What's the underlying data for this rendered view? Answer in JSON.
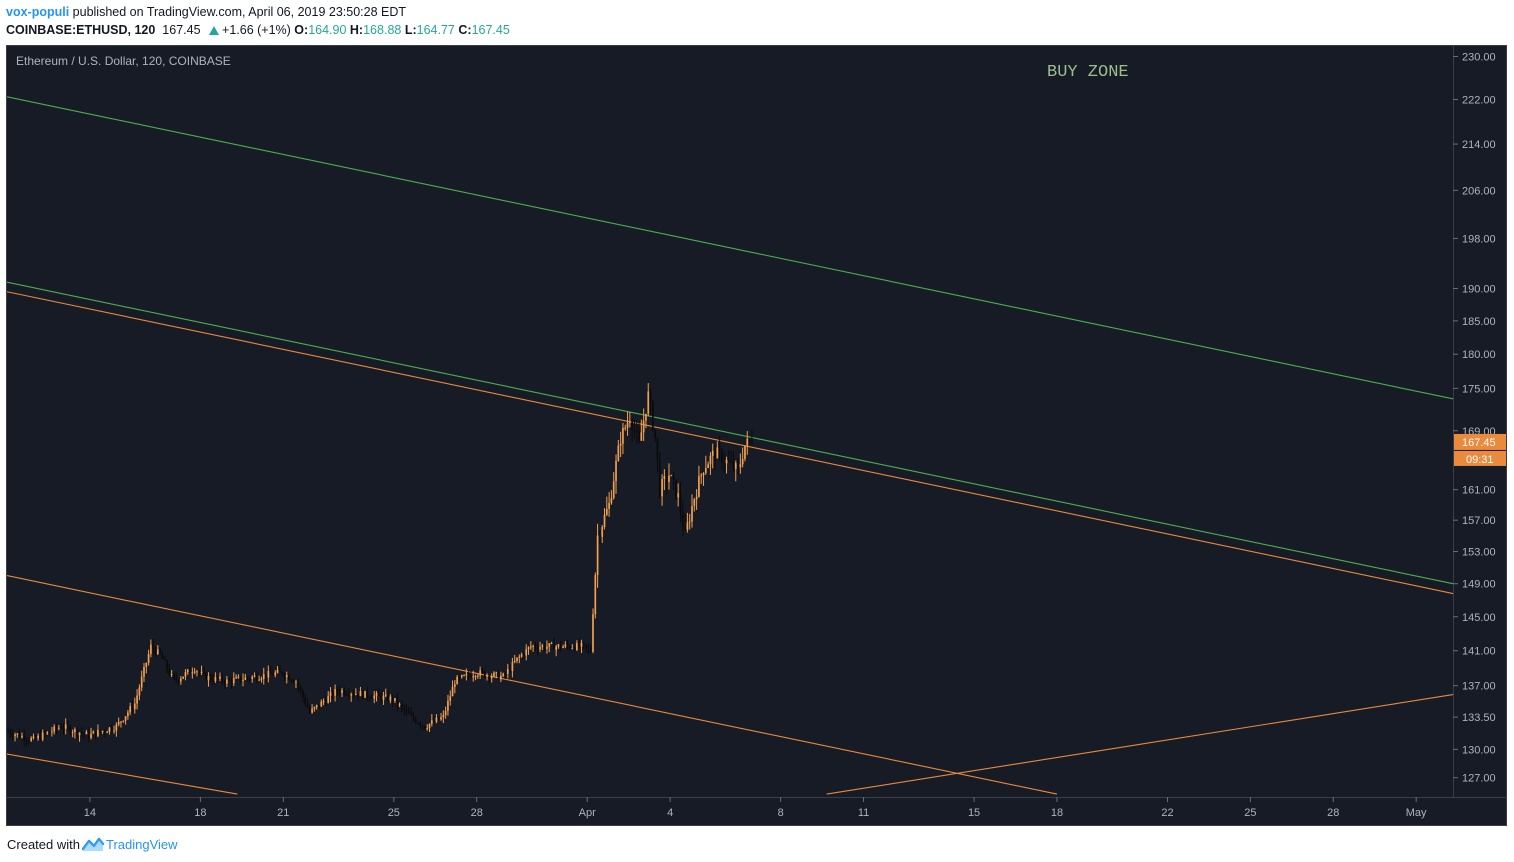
{
  "header": {
    "author": "vox-populi",
    "published_text": " published on TradingView.com, April 06, 2019 23:50:28 EDT",
    "symbol": "COINBASE:ETHUSD, 120",
    "last": "167.45",
    "change": "+1.66 (+1%)",
    "o_label": "O:",
    "o_value": "164.90",
    "h_label": "H:",
    "h_value": "168.88",
    "l_label": "L:",
    "l_value": "164.77",
    "c_label": "C:",
    "c_value": "167.45"
  },
  "footer": {
    "created_with": "Created with",
    "brand": "TradingView"
  },
  "colors": {
    "background": "#171b26",
    "candle_up": "#f0a050",
    "candle_down": "#0a0a0a",
    "green_line": "#4caf50",
    "orange_line": "#e98a3c",
    "label_text": "#b0b3bb",
    "buy_zone": "#9bbf8f",
    "price_tag": "#e98a3c"
  },
  "chart_data": {
    "type": "candlestick",
    "title": "Ethereum / U.S. Dollar, 120, COINBASE",
    "annotation": "BUY ZONE",
    "price_scale": "log",
    "ylim": [
      125,
      232
    ],
    "xlim": [
      "2019-03-11T00:00",
      "2019-05-02T08:00"
    ],
    "y_ticks": [
      127,
      130,
      133.5,
      137,
      141,
      145,
      149,
      153,
      157,
      161,
      169,
      175,
      180,
      185,
      190,
      198,
      206,
      214,
      222,
      230
    ],
    "y_tick_labels": [
      "127.00",
      "130.00",
      "133.50",
      "137.00",
      "141.00",
      "145.00",
      "149.00",
      "153.00",
      "157.00",
      "161.00",
      "169.00",
      "175.00",
      "180.00",
      "185.00",
      "190.00",
      "198.00",
      "206.00",
      "214.00",
      "222.00",
      "230.00"
    ],
    "x_tick_labels": [
      "14",
      "18",
      "21",
      "25",
      "28",
      "Apr",
      "4",
      "8",
      "11",
      "15",
      "18",
      "22",
      "25",
      "28",
      "May"
    ],
    "x_tick_dates": [
      "2019-03-14",
      "2019-03-18",
      "2019-03-21",
      "2019-03-25",
      "2019-03-28",
      "2019-04-01",
      "2019-04-04",
      "2019-04-08",
      "2019-04-11",
      "2019-04-15",
      "2019-04-18",
      "2019-04-22",
      "2019-04-25",
      "2019-04-28",
      "2019-05-01"
    ],
    "last_price_label": "167.45",
    "countdown_label": "09:31",
    "candle_interval_hours": 2,
    "candles_start": "2019-03-11T00:00",
    "anchors": [
      [
        "2019-03-11T00:00",
        132
      ],
      [
        "2019-03-12T00:00",
        131
      ],
      [
        "2019-03-13T00:00",
        132.5
      ],
      [
        "2019-03-14T00:00",
        131.5
      ],
      [
        "2019-03-15T00:00",
        132.5
      ],
      [
        "2019-03-15T16:00",
        135
      ],
      [
        "2019-03-16T06:00",
        141.5
      ],
      [
        "2019-03-16T14:00",
        140.5
      ],
      [
        "2019-03-17T02:00",
        137.5
      ],
      [
        "2019-03-17T20:00",
        139
      ],
      [
        "2019-03-18T04:00",
        138
      ],
      [
        "2019-03-19T00:00",
        137.5
      ],
      [
        "2019-03-20T00:00",
        138
      ],
      [
        "2019-03-21T00:00",
        138.5
      ],
      [
        "2019-03-21T12:00",
        137.5
      ],
      [
        "2019-03-22T00:00",
        134
      ],
      [
        "2019-03-23T00:00",
        136.5
      ],
      [
        "2019-03-24T00:00",
        136
      ],
      [
        "2019-03-25T00:00",
        135.5
      ],
      [
        "2019-03-25T16:00",
        133.5
      ],
      [
        "2019-03-26T04:00",
        132.5
      ],
      [
        "2019-03-26T20:00",
        133.5
      ],
      [
        "2019-03-27T06:00",
        137.5
      ],
      [
        "2019-03-28T00:00",
        138.5
      ],
      [
        "2019-03-29T00:00",
        138
      ],
      [
        "2019-03-29T12:00",
        140
      ],
      [
        "2019-03-30T00:00",
        141.5
      ],
      [
        "2019-03-31T00:00",
        141.5
      ],
      [
        "2019-03-31T20:00",
        141.5
      ],
      [
        "2019-04-01T04:00",
        141
      ],
      [
        "2019-04-01T10:00",
        155
      ],
      [
        "2019-04-01T20:00",
        159
      ],
      [
        "2019-04-02T06:00",
        168
      ],
      [
        "2019-04-02T14:00",
        171
      ],
      [
        "2019-04-02T22:00",
        167
      ],
      [
        "2019-04-03T06:00",
        174
      ],
      [
        "2019-04-03T12:00",
        168
      ],
      [
        "2019-04-03T16:00",
        161
      ],
      [
        "2019-04-04T00:00",
        163
      ],
      [
        "2019-04-04T08:00",
        160
      ],
      [
        "2019-04-04T14:00",
        155
      ],
      [
        "2019-04-04T22:00",
        160
      ],
      [
        "2019-04-05T06:00",
        164
      ],
      [
        "2019-04-05T16:00",
        166
      ],
      [
        "2019-04-06T00:00",
        165
      ],
      [
        "2019-04-06T12:00",
        163.5
      ],
      [
        "2019-04-06T18:00",
        167
      ],
      [
        "2019-04-06T22:00",
        167.45
      ]
    ],
    "trendlines": [
      {
        "color": "green",
        "points": [
          [
            "2019-03-11T00:00",
            222.5
          ],
          [
            "2019-05-02T08:00",
            173.5
          ]
        ]
      },
      {
        "color": "green",
        "points": [
          [
            "2019-03-11T00:00",
            191
          ],
          [
            "2019-05-02T08:00",
            149
          ]
        ]
      },
      {
        "color": "orange",
        "points": [
          [
            "2019-03-11T00:00",
            189.5
          ],
          [
            "2019-05-02T08:00",
            147.8
          ]
        ]
      },
      {
        "color": "orange",
        "points": [
          [
            "2019-03-11T00:00",
            150
          ],
          [
            "2019-04-18T00:00",
            125.3
          ]
        ]
      },
      {
        "color": "orange",
        "points": [
          [
            "2019-03-11T00:00",
            129.5
          ],
          [
            "2019-03-19T08:00",
            125.3
          ]
        ]
      },
      {
        "color": "orange",
        "points": [
          [
            "2019-04-09T16:00",
            125.3
          ],
          [
            "2019-05-02T08:00",
            136
          ]
        ]
      }
    ]
  }
}
